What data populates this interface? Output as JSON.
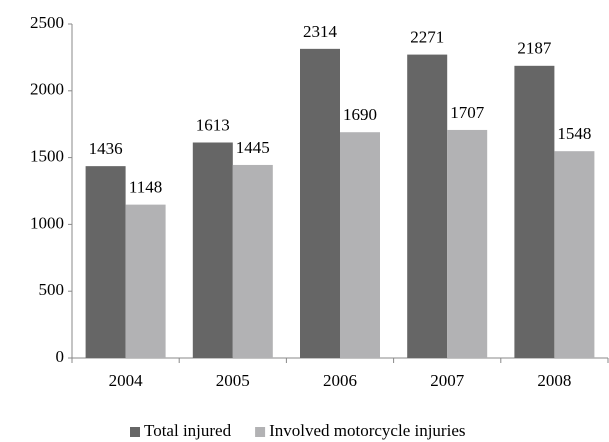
{
  "chart_data": {
    "type": "bar",
    "categories": [
      "2004",
      "2005",
      "2006",
      "2007",
      "2008"
    ],
    "series": [
      {
        "name": "Total injured",
        "color": "#666666",
        "values": [
          1436,
          1613,
          2314,
          2271,
          2187
        ]
      },
      {
        "name": "Involved motorcycle injuries",
        "color": "#b2b2b4",
        "values": [
          1148,
          1445,
          1690,
          1707,
          1548
        ]
      }
    ],
    "ylim": [
      0,
      2500
    ],
    "yticks": [
      0,
      500,
      1000,
      1500,
      2000,
      2500
    ],
    "grid": false,
    "legend": "bottom"
  }
}
